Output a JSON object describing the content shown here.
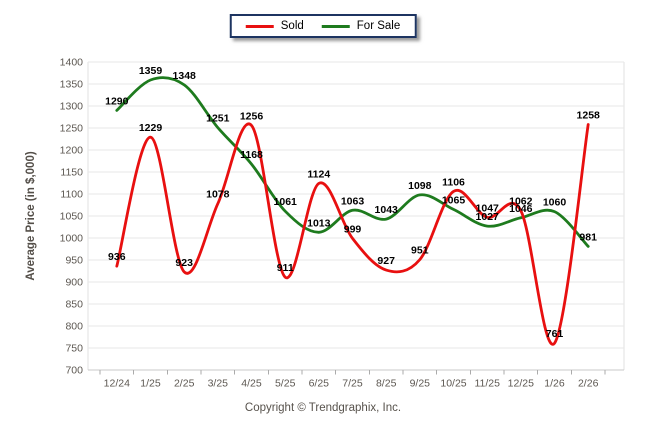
{
  "legend": {
    "items": [
      {
        "label": "Sold",
        "color": "#e81010"
      },
      {
        "label": "For Sale",
        "color": "#1e7b1e"
      }
    ]
  },
  "footer": {
    "copyright": "Copyright © Trendgraphix, Inc."
  },
  "chart_data": {
    "type": "line",
    "smooth": true,
    "title": "",
    "xlabel": "",
    "ylabel": "Average Price (in $,000)",
    "x": [
      "12/24",
      "1/25",
      "2/25",
      "3/25",
      "4/25",
      "5/25",
      "6/25",
      "7/25",
      "8/25",
      "9/25",
      "10/25",
      "11/25",
      "12/25",
      "1/26",
      "2/26"
    ],
    "series": [
      {
        "name": "Sold",
        "color": "#e81010",
        "values": [
          936,
          1229,
          923,
          1078,
          1256,
          911,
          1124,
          999,
          927,
          951,
          1106,
          1047,
          1062,
          761,
          1258
        ]
      },
      {
        "name": "For Sale",
        "color": "#1e7b1e",
        "values": [
          1290,
          1359,
          1348,
          1251,
          1168,
          1061,
          1013,
          1063,
          1043,
          1098,
          1065,
          1027,
          1046,
          1060,
          981
        ]
      }
    ],
    "ylim": [
      700,
      1400
    ],
    "ytick_step": 50,
    "grid": "horizontal",
    "legend_position": "top-center",
    "data_labels": true,
    "colors": {
      "gridline": "#e7e7e7",
      "plot_border": "#e2e2e2",
      "axis_line": "#c9c9c9",
      "tick": "#ababab",
      "axis_text": "#5c5751",
      "data_label": "#000000"
    }
  }
}
